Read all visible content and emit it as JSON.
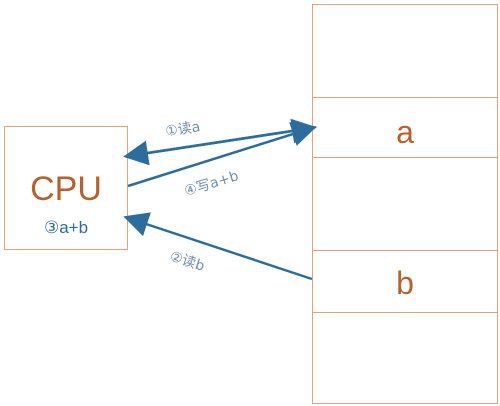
{
  "cpu": {
    "label": "CPU",
    "operation": "③a+b"
  },
  "memory": {
    "cells": [
      "",
      "a",
      "",
      "",
      "b",
      ""
    ]
  },
  "steps": {
    "read_a": "①读a",
    "write_sum": "④写a+b",
    "read_b": "②读b"
  },
  "colors": {
    "box_border": "#e8a07a",
    "text_accent": "#b5622f",
    "arrow": "#2d6d9e",
    "step_text": "#6f8fb2"
  }
}
